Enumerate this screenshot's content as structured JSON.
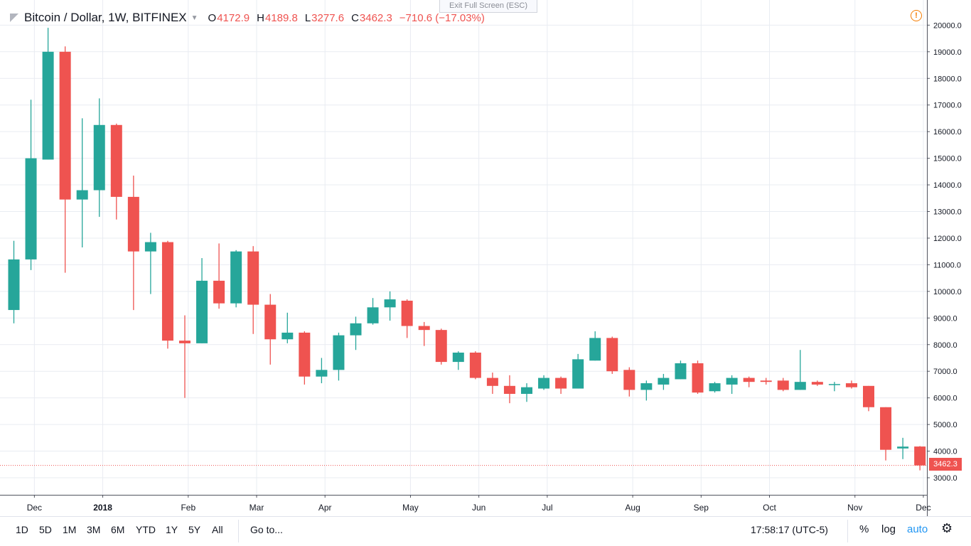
{
  "legend": {
    "symbol": "Bitcoin / Dollar, 1W, BITFINEX",
    "open_label": "O",
    "open": "4172.9",
    "high_label": "H",
    "high": "4189.8",
    "low_label": "L",
    "low": "3277.6",
    "close_label": "C",
    "close": "3462.3",
    "change": "−710.6 (−17.03%)"
  },
  "exit_fullscreen": "Exit Full Screen (ESC)",
  "warning_icon_text": "!",
  "last_price": "3462.3",
  "bottom_bar": {
    "ranges": [
      "1D",
      "5D",
      "1M",
      "3M",
      "6M",
      "YTD",
      "1Y",
      "5Y",
      "All"
    ],
    "goto": "Go to...",
    "clock": "17:58:17 (UTC-5)",
    "percent": "%",
    "log": "log",
    "auto": "auto"
  },
  "colors": {
    "up": "#26a69a",
    "down": "#ef5350",
    "grid": "#e9ecf2",
    "last_price": "#ef5350"
  },
  "chart_data": {
    "type": "candlestick",
    "interval": "1W",
    "y_axis": {
      "min": 3000,
      "max": 20000,
      "tick_step": 1000,
      "position": "right",
      "scale": "linear"
    },
    "y_ticks": [
      "3000.0",
      "4000.0",
      "5000.0",
      "6000.0",
      "7000.0",
      "8000.0",
      "9000.0",
      "10000.0",
      "11000.0",
      "12000.0",
      "13000.0",
      "14000.0",
      "15000.0",
      "16000.0",
      "17000.0",
      "18000.0",
      "19000.0",
      "20000.0"
    ],
    "x_ticks": [
      {
        "label": "Dec",
        "index": 1.2,
        "bold": false
      },
      {
        "label": "2018",
        "index": 5.2,
        "bold": true
      },
      {
        "label": "Feb",
        "index": 10.2,
        "bold": false
      },
      {
        "label": "Mar",
        "index": 14.2,
        "bold": false
      },
      {
        "label": "Apr",
        "index": 18.2,
        "bold": false
      },
      {
        "label": "May",
        "index": 23.2,
        "bold": false
      },
      {
        "label": "Jun",
        "index": 27.2,
        "bold": false
      },
      {
        "label": "Jul",
        "index": 31.2,
        "bold": false
      },
      {
        "label": "Aug",
        "index": 36.2,
        "bold": false
      },
      {
        "label": "Sep",
        "index": 40.2,
        "bold": false
      },
      {
        "label": "Oct",
        "index": 44.2,
        "bold": false
      },
      {
        "label": "Nov",
        "index": 49.2,
        "bold": false
      },
      {
        "label": "Dec",
        "index": 53.2,
        "bold": false
      }
    ],
    "last_price": 3462.3,
    "grid": true,
    "candles": [
      {
        "o": 9300,
        "h": 11900,
        "l": 8800,
        "c": 11200
      },
      {
        "o": 11200,
        "h": 17200,
        "l": 10800,
        "c": 15000
      },
      {
        "o": 14950,
        "h": 19900,
        "l": 14950,
        "c": 19000
      },
      {
        "o": 19000,
        "h": 19200,
        "l": 10700,
        "c": 13450
      },
      {
        "o": 13450,
        "h": 16500,
        "l": 11650,
        "c": 13800
      },
      {
        "o": 13800,
        "h": 17250,
        "l": 12800,
        "c": 16250
      },
      {
        "o": 16250,
        "h": 16300,
        "l": 12700,
        "c": 13550
      },
      {
        "o": 13550,
        "h": 14350,
        "l": 9300,
        "c": 11500
      },
      {
        "o": 11500,
        "h": 12200,
        "l": 9900,
        "c": 11850
      },
      {
        "o": 11850,
        "h": 11900,
        "l": 7850,
        "c": 8150
      },
      {
        "o": 8150,
        "h": 9100,
        "l": 6000,
        "c": 8050
      },
      {
        "o": 8050,
        "h": 11250,
        "l": 8050,
        "c": 10400
      },
      {
        "o": 10400,
        "h": 11800,
        "l": 9350,
        "c": 9550
      },
      {
        "o": 9550,
        "h": 11550,
        "l": 9400,
        "c": 11500
      },
      {
        "o": 11500,
        "h": 11700,
        "l": 8400,
        "c": 9500
      },
      {
        "o": 9500,
        "h": 9900,
        "l": 7250,
        "c": 8200
      },
      {
        "o": 8200,
        "h": 9200,
        "l": 8050,
        "c": 8450
      },
      {
        "o": 8450,
        "h": 8500,
        "l": 6500,
        "c": 6800
      },
      {
        "o": 6800,
        "h": 7500,
        "l": 6550,
        "c": 7050
      },
      {
        "o": 7050,
        "h": 8450,
        "l": 6650,
        "c": 8350
      },
      {
        "o": 8350,
        "h": 9050,
        "l": 7800,
        "c": 8800
      },
      {
        "o": 8800,
        "h": 9750,
        "l": 8750,
        "c": 9400
      },
      {
        "o": 9400,
        "h": 10000,
        "l": 8900,
        "c": 9700
      },
      {
        "o": 9650,
        "h": 9700,
        "l": 8250,
        "c": 8700
      },
      {
        "o": 8700,
        "h": 8850,
        "l": 7950,
        "c": 8550
      },
      {
        "o": 8550,
        "h": 8600,
        "l": 7250,
        "c": 7350
      },
      {
        "o": 7350,
        "h": 7750,
        "l": 7050,
        "c": 7700
      },
      {
        "o": 7700,
        "h": 7750,
        "l": 6700,
        "c": 6750
      },
      {
        "o": 6750,
        "h": 6950,
        "l": 6150,
        "c": 6450
      },
      {
        "o": 6450,
        "h": 6850,
        "l": 5800,
        "c": 6150
      },
      {
        "o": 6150,
        "h": 6550,
        "l": 5850,
        "c": 6400
      },
      {
        "o": 6350,
        "h": 6850,
        "l": 6300,
        "c": 6750
      },
      {
        "o": 6750,
        "h": 6800,
        "l": 6150,
        "c": 6350
      },
      {
        "o": 6350,
        "h": 7650,
        "l": 6350,
        "c": 7450
      },
      {
        "o": 7400,
        "h": 8500,
        "l": 7400,
        "c": 8250
      },
      {
        "o": 8250,
        "h": 8300,
        "l": 6900,
        "c": 7000
      },
      {
        "o": 7050,
        "h": 7150,
        "l": 6050,
        "c": 6300
      },
      {
        "o": 6300,
        "h": 6650,
        "l": 5900,
        "c": 6550
      },
      {
        "o": 6500,
        "h": 6900,
        "l": 6300,
        "c": 6750
      },
      {
        "o": 6700,
        "h": 7400,
        "l": 6700,
        "c": 7300
      },
      {
        "o": 7300,
        "h": 7400,
        "l": 6150,
        "c": 6200
      },
      {
        "o": 6250,
        "h": 6600,
        "l": 6200,
        "c": 6550
      },
      {
        "o": 6500,
        "h": 6850,
        "l": 6150,
        "c": 6750
      },
      {
        "o": 6750,
        "h": 6800,
        "l": 6400,
        "c": 6600
      },
      {
        "o": 6650,
        "h": 6750,
        "l": 6500,
        "c": 6600
      },
      {
        "o": 6650,
        "h": 6750,
        "l": 6250,
        "c": 6300
      },
      {
        "o": 6300,
        "h": 7800,
        "l": 6300,
        "c": 6600
      },
      {
        "o": 6600,
        "h": 6650,
        "l": 6450,
        "c": 6500
      },
      {
        "o": 6500,
        "h": 6600,
        "l": 6250,
        "c": 6520
      },
      {
        "o": 6550,
        "h": 6650,
        "l": 6350,
        "c": 6400
      },
      {
        "o": 6450,
        "h": 6450,
        "l": 5500,
        "c": 5650
      },
      {
        "o": 5650,
        "h": 5650,
        "l": 3650,
        "c": 4050
      },
      {
        "o": 4100,
        "h": 4500,
        "l": 3700,
        "c": 4170
      },
      {
        "o": 4172.9,
        "h": 4189.8,
        "l": 3277.6,
        "c": 3462.3
      }
    ]
  }
}
